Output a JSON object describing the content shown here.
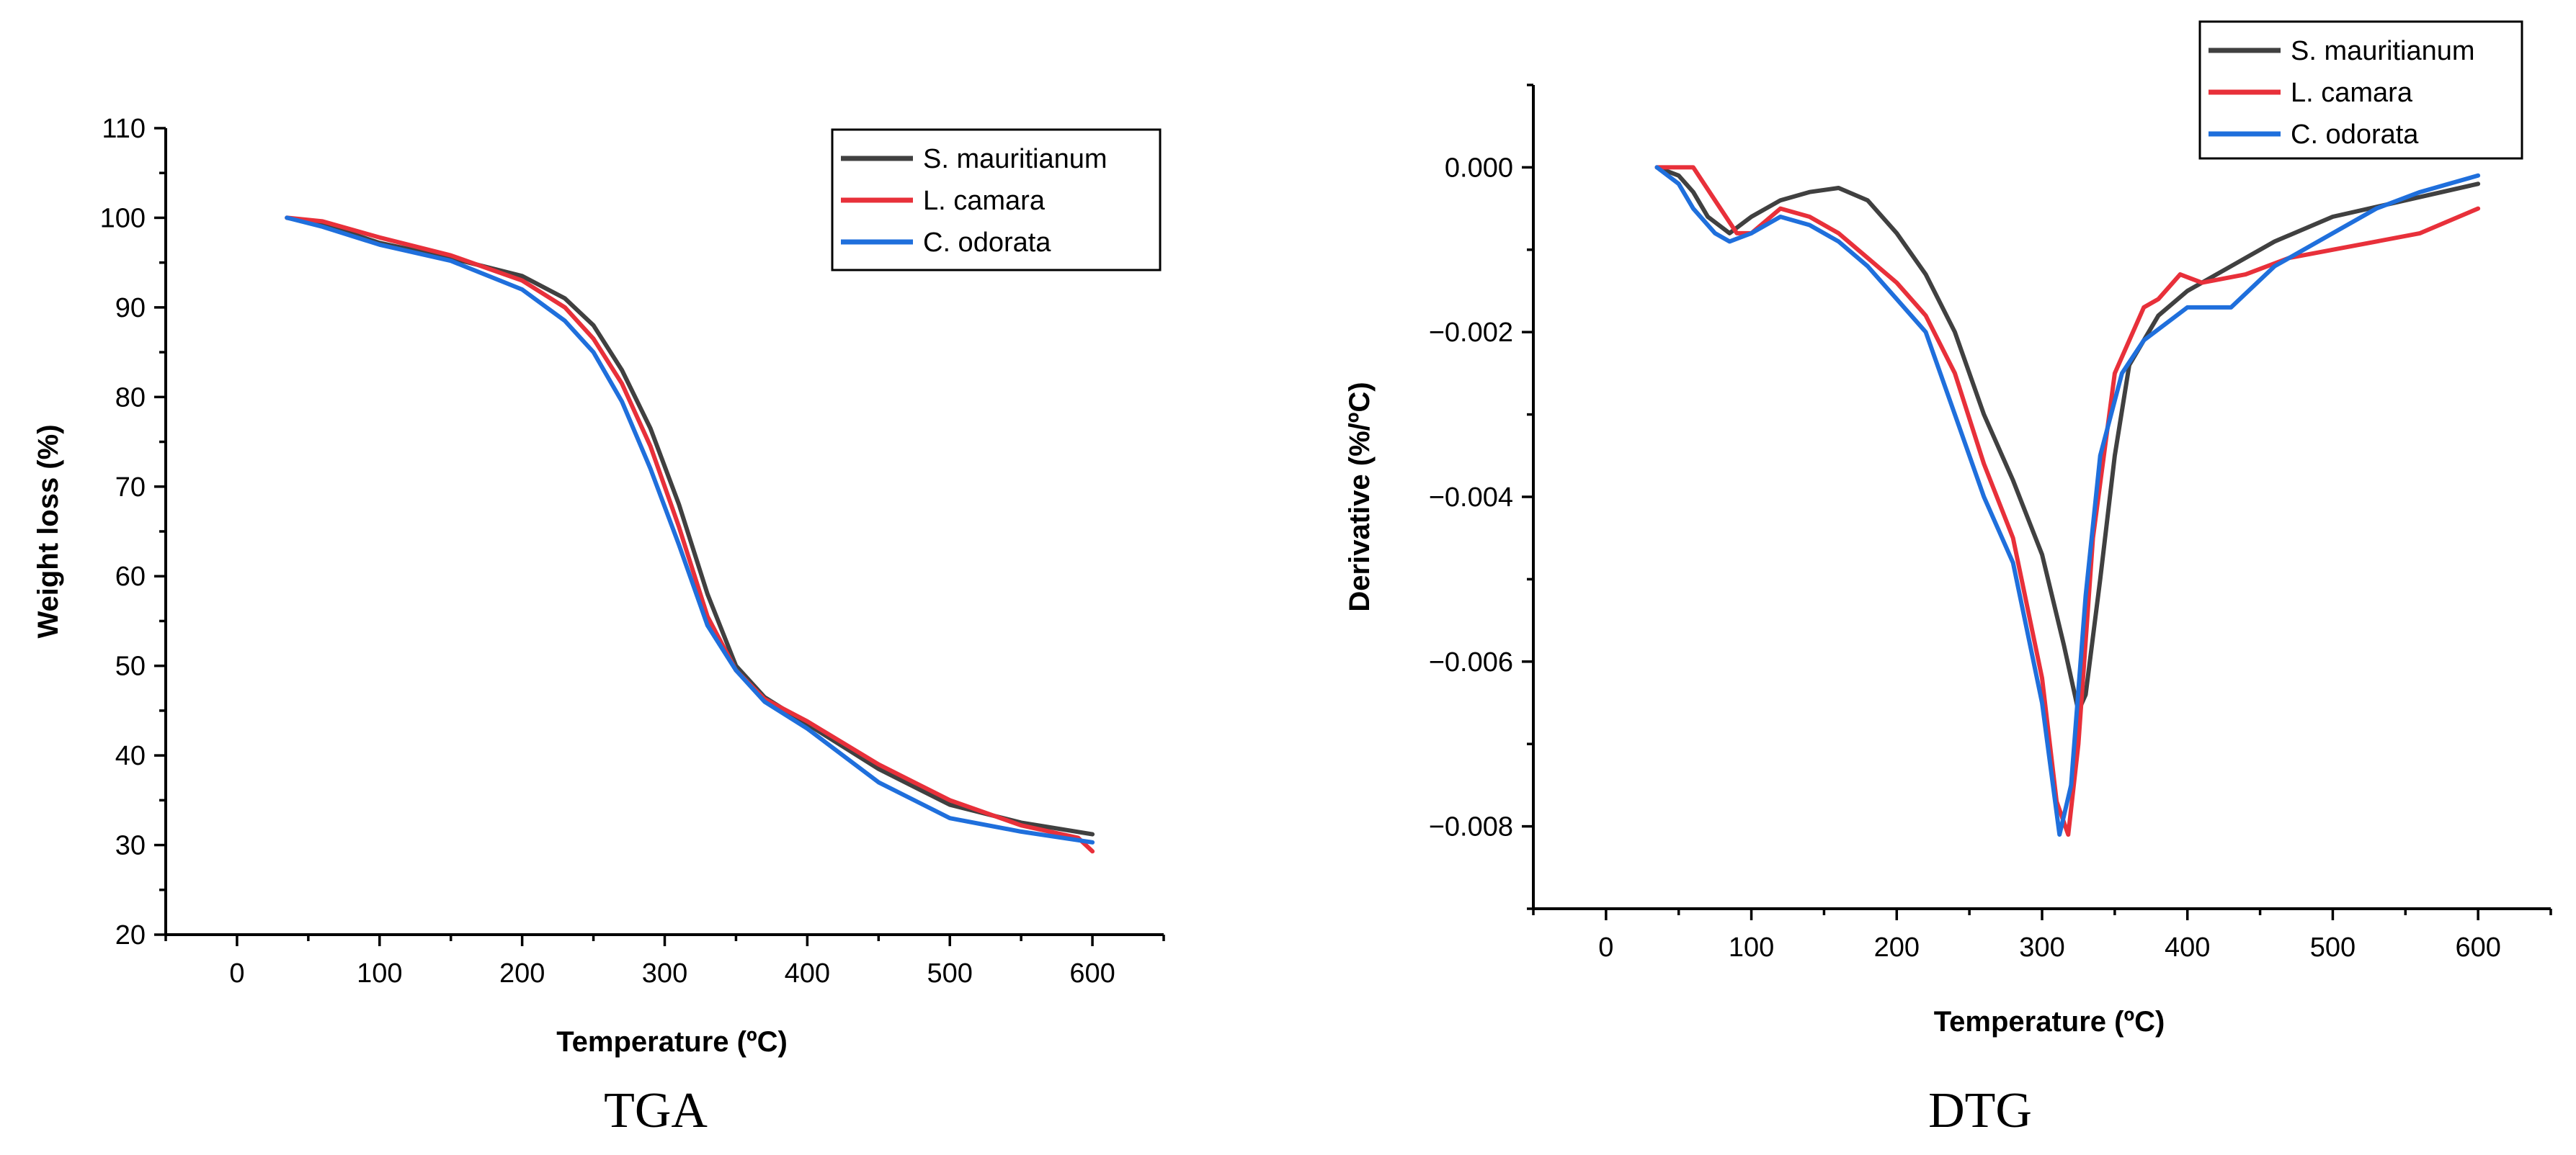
{
  "colors": {
    "S. mauritianum": "#404040",
    "L. camara": "#e8303a",
    "C. odorata": "#1f6fdc"
  },
  "chart_data": [
    {
      "id": "tga",
      "type": "line",
      "caption": "TGA",
      "title": "",
      "xlabel": "Temperature (ºC)",
      "ylabel": "Weight loss (%)",
      "xlim": [
        -50,
        650
      ],
      "ylim": [
        20,
        110
      ],
      "xticks": [
        0,
        100,
        200,
        300,
        400,
        500,
        600
      ],
      "yticks": [
        20,
        30,
        40,
        50,
        60,
        70,
        80,
        90,
        100,
        110
      ],
      "tick_labels_x": [
        "0",
        "100",
        "200",
        "300",
        "400",
        "500",
        "600"
      ],
      "tick_labels_y": [
        "20",
        "30",
        "40",
        "50",
        "60",
        "70",
        "80",
        "90",
        "100",
        "110"
      ],
      "legend_position": "top-right",
      "series": [
        {
          "name": "S. mauritianum",
          "x": [
            35,
            60,
            100,
            150,
            200,
            230,
            250,
            270,
            290,
            310,
            330,
            350,
            370,
            400,
            450,
            500,
            550,
            600
          ],
          "y": [
            100,
            99.3,
            97.2,
            95.5,
            93.5,
            91,
            88,
            83,
            76.5,
            68,
            58,
            50,
            46.5,
            43.5,
            38.5,
            34.5,
            32.5,
            31.2
          ]
        },
        {
          "name": "L. camara",
          "x": [
            35,
            60,
            100,
            150,
            200,
            230,
            250,
            270,
            290,
            310,
            330,
            350,
            370,
            400,
            450,
            500,
            550,
            590,
            600
          ],
          "y": [
            100,
            99.6,
            97.8,
            95.8,
            93,
            90,
            86.5,
            81.5,
            74.5,
            65.5,
            55.5,
            49.5,
            46.3,
            43.8,
            39,
            35,
            32.2,
            30.8,
            29.3
          ]
        },
        {
          "name": "C. odorata",
          "x": [
            35,
            60,
            100,
            150,
            200,
            230,
            250,
            270,
            290,
            310,
            330,
            350,
            370,
            400,
            450,
            500,
            550,
            600
          ],
          "y": [
            100,
            99,
            97,
            95.2,
            92,
            88.5,
            85,
            79.5,
            72,
            63.5,
            54.5,
            49.5,
            46,
            43,
            37,
            33,
            31.5,
            30.3
          ]
        }
      ]
    },
    {
      "id": "dtg",
      "type": "line",
      "caption": "DTG",
      "title": "",
      "xlabel": "Temperature (ºC)",
      "ylabel": "Derivative (%/ºC)",
      "xlim": [
        -50,
        650
      ],
      "ylim": [
        -0.009,
        0.001
      ],
      "xticks": [
        0,
        100,
        200,
        300,
        400,
        500,
        600
      ],
      "yticks": [
        -0.008,
        -0.006,
        -0.004,
        -0.002,
        0.0
      ],
      "tick_labels_x": [
        "0",
        "100",
        "200",
        "300",
        "400",
        "500",
        "600"
      ],
      "tick_labels_y": [
        "−0.008",
        "−0.006",
        "−0.004",
        "−0.002",
        "0.000"
      ],
      "legend_position": "top-right",
      "series": [
        {
          "name": "S. mauritianum",
          "x": [
            35,
            50,
            60,
            70,
            85,
            100,
            120,
            140,
            160,
            180,
            200,
            220,
            240,
            260,
            280,
            300,
            315,
            325,
            330,
            340,
            350,
            360,
            380,
            400,
            430,
            460,
            500,
            550,
            600
          ],
          "y": [
            0.0,
            -0.0001,
            -0.0003,
            -0.0006,
            -0.0008,
            -0.0006,
            -0.0004,
            -0.0003,
            -0.00025,
            -0.0004,
            -0.0008,
            -0.0013,
            -0.002,
            -0.003,
            -0.0038,
            -0.0047,
            -0.0058,
            -0.0066,
            -0.0064,
            -0.005,
            -0.0035,
            -0.0024,
            -0.0018,
            -0.0015,
            -0.0012,
            -0.0009,
            -0.0006,
            -0.0004,
            -0.0002
          ]
        },
        {
          "name": "L. camara",
          "x": [
            35,
            50,
            60,
            75,
            90,
            100,
            120,
            140,
            160,
            180,
            200,
            220,
            240,
            260,
            280,
            300,
            310,
            318,
            325,
            335,
            350,
            370,
            380,
            395,
            410,
            440,
            470,
            500,
            530,
            560,
            600
          ],
          "y": [
            0.0,
            0.0,
            0.0,
            -0.0004,
            -0.0008,
            -0.0008,
            -0.0005,
            -0.0006,
            -0.0008,
            -0.0011,
            -0.0014,
            -0.0018,
            -0.0025,
            -0.0036,
            -0.0045,
            -0.0062,
            -0.0077,
            -0.0081,
            -0.007,
            -0.0045,
            -0.0025,
            -0.0017,
            -0.0016,
            -0.0013,
            -0.0014,
            -0.0013,
            -0.0011,
            -0.001,
            -0.0009,
            -0.0008,
            -0.0005
          ]
        },
        {
          "name": "C. odorata",
          "x": [
            35,
            50,
            60,
            75,
            85,
            100,
            120,
            140,
            160,
            180,
            200,
            220,
            240,
            260,
            280,
            300,
            312,
            320,
            330,
            340,
            355,
            370,
            400,
            430,
            460,
            500,
            530,
            560,
            600
          ],
          "y": [
            0.0,
            -0.0002,
            -0.0005,
            -0.0008,
            -0.0009,
            -0.0008,
            -0.0006,
            -0.0007,
            -0.0009,
            -0.0012,
            -0.0016,
            -0.002,
            -0.003,
            -0.004,
            -0.0048,
            -0.0065,
            -0.0081,
            -0.0075,
            -0.0052,
            -0.0035,
            -0.0025,
            -0.0021,
            -0.0017,
            -0.0017,
            -0.0012,
            -0.0008,
            -0.0005,
            -0.0003,
            -0.0001
          ]
        }
      ]
    }
  ]
}
